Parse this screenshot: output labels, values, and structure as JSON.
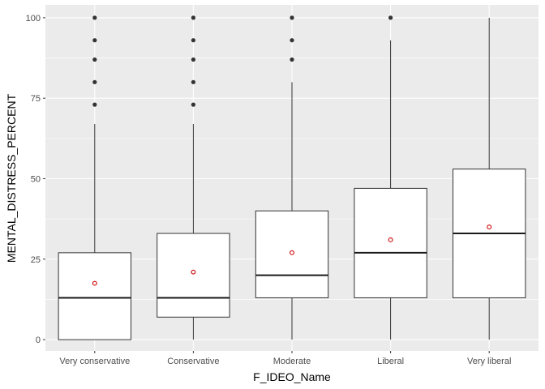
{
  "chart_data": {
    "type": "boxplot",
    "title": "",
    "xlabel": "F_IDEO_Name",
    "ylabel": "MENTAL_DISTRESS_PERCENT",
    "ylim": [
      -3.5,
      104
    ],
    "yticks": [
      0,
      25,
      50,
      75,
      100
    ],
    "grid": true,
    "legend": "none",
    "categories": [
      "Very conservative",
      "Conservative",
      "Moderate",
      "Liberal",
      "Very liberal"
    ],
    "boxes": [
      {
        "category": "Very conservative",
        "whisker_low": 0,
        "q1": 0,
        "median": 13,
        "q3": 27,
        "whisker_high": 67,
        "mean": 17.5,
        "outliers": [
          73,
          80,
          87,
          93,
          100
        ]
      },
      {
        "category": "Conservative",
        "whisker_low": 0,
        "q1": 7,
        "median": 13,
        "q3": 33,
        "whisker_high": 67,
        "mean": 21,
        "outliers": [
          73,
          80,
          87,
          93,
          100
        ]
      },
      {
        "category": "Moderate",
        "whisker_low": 0,
        "q1": 13,
        "median": 20,
        "q3": 40,
        "whisker_high": 80,
        "mean": 27,
        "outliers": [
          87,
          93,
          100
        ]
      },
      {
        "category": "Liberal",
        "whisker_low": 0,
        "q1": 13,
        "median": 27,
        "q3": 47,
        "whisker_high": 93,
        "mean": 31,
        "outliers": [
          100
        ]
      },
      {
        "category": "Very liberal",
        "whisker_low": 0,
        "q1": 13,
        "median": 33,
        "q3": 53,
        "whisker_high": 100,
        "mean": 35,
        "outliers": []
      }
    ],
    "colors": {
      "panel": "#ebebeb",
      "grid_major": "#ffffff",
      "box_fill": "#ffffff",
      "box_line": "#333333",
      "median_line": "#1a1a1a",
      "outlier": "#333333",
      "mean_marker": "#cc0000"
    }
  }
}
